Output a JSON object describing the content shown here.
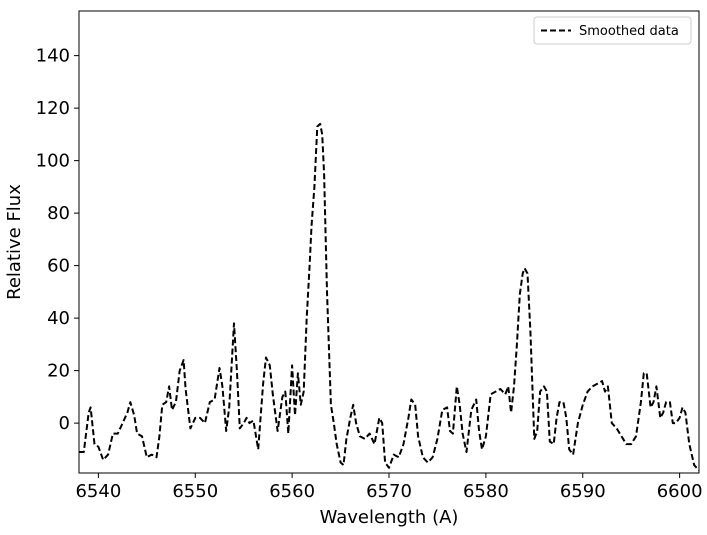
{
  "chart_data": {
    "type": "line",
    "title": "",
    "xlabel": "Wavelength (A)",
    "ylabel": "Relative Flux",
    "xlim": [
      6538,
      6602
    ],
    "ylim": [
      -19,
      157
    ],
    "xticks": [
      6540,
      6550,
      6560,
      6570,
      6580,
      6590,
      6600
    ],
    "yticks": [
      0,
      20,
      40,
      60,
      80,
      100,
      120,
      140
    ],
    "grid": false,
    "legend": {
      "position": "top-right",
      "entries": [
        "Smoothed data"
      ]
    },
    "series": [
      {
        "name": "Smoothed data",
        "color": "#000000",
        "line_style": "dashed",
        "x": [
          6538.0,
          6538.5,
          6539.0,
          6539.2,
          6539.6,
          6540.0,
          6540.5,
          6541.0,
          6541.5,
          6542.0,
          6542.5,
          6543.0,
          6543.3,
          6543.7,
          6544.0,
          6544.5,
          6545.0,
          6545.5,
          6546.0,
          6546.3,
          6546.6,
          6547.0,
          6547.3,
          6547.6,
          6548.0,
          6548.4,
          6548.8,
          6549.0,
          6549.5,
          6550.0,
          6550.5,
          6551.0,
          6551.5,
          6552.0,
          6552.5,
          6552.8,
          6553.2,
          6553.5,
          6554.0,
          6554.3,
          6554.6,
          6555.0,
          6555.3,
          6555.6,
          6556.0,
          6556.5,
          6557.0,
          6557.3,
          6557.7,
          6558.0,
          6558.5,
          6559.0,
          6559.3,
          6559.6,
          6560.0,
          6560.3,
          6560.6,
          6560.9,
          6561.2,
          6561.5,
          6561.8,
          6562.0,
          6562.3,
          6562.6,
          6562.9,
          6563.1,
          6563.3,
          6563.6,
          6564.0,
          6564.3,
          6564.6,
          6565.0,
          6565.3,
          6565.6,
          6566.0,
          6566.3,
          6566.6,
          6567.0,
          6567.5,
          6568.0,
          6568.5,
          6569.0,
          6569.3,
          6569.6,
          6570.0,
          6570.5,
          6571.0,
          6571.5,
          6572.0,
          6572.3,
          6572.7,
          6573.0,
          6573.5,
          6574.0,
          6574.5,
          6575.0,
          6575.5,
          6576.0,
          6576.3,
          6576.6,
          6577.0,
          6577.3,
          6577.6,
          6578.0,
          6578.5,
          6579.0,
          6579.3,
          6579.6,
          6580.0,
          6580.5,
          6581.0,
          6581.5,
          6582.0,
          6582.3,
          6582.6,
          6582.9,
          6583.2,
          6583.5,
          6583.8,
          6584.0,
          6584.3,
          6584.6,
          6585.0,
          6585.3,
          6585.6,
          6586.0,
          6586.3,
          6586.6,
          6587.0,
          6587.3,
          6587.6,
          6588.0,
          6588.3,
          6588.6,
          6589.0,
          6589.5,
          6590.0,
          6590.5,
          6591.0,
          6591.5,
          6592.0,
          6592.3,
          6592.6,
          6593.0,
          6593.5,
          6594.0,
          6594.5,
          6595.0,
          6595.5,
          6596.0,
          6596.3,
          6596.6,
          6597.0,
          6597.3,
          6597.6,
          6598.0,
          6598.3,
          6598.6,
          6599.0,
          6599.3,
          6599.6,
          6600.0,
          6600.3,
          6600.6,
          6601.0,
          6601.5,
          6602.0
        ],
        "y": [
          -11,
          -11,
          4,
          6,
          -8,
          -9,
          -14,
          -12,
          -4,
          -4,
          0,
          4,
          8,
          3,
          -4,
          -5,
          -13,
          -12,
          -13,
          -5,
          7,
          8,
          14,
          5,
          8,
          20,
          24,
          13,
          -2,
          2,
          2,
          0,
          8,
          9,
          21,
          14,
          -3,
          6,
          38,
          20,
          -2,
          0,
          2,
          0,
          1,
          -10,
          15,
          25,
          22,
          11,
          -3,
          10,
          12,
          -4,
          22,
          3,
          19,
          7,
          12,
          40,
          60,
          75,
          90,
          113,
          114,
          110,
          95,
          50,
          7,
          0,
          -8,
          -15,
          -16,
          -6,
          2,
          7,
          0,
          -5,
          -6,
          -4,
          -8,
          2,
          0,
          -15,
          -17,
          -12,
          -13,
          -8,
          2,
          9,
          7,
          -5,
          -13,
          -15,
          -13,
          -6,
          5,
          6,
          -3,
          -4,
          14,
          7,
          -4,
          -11,
          5,
          9,
          -3,
          -10,
          -5,
          11,
          12,
          13,
          11,
          14,
          4,
          14,
          30,
          49,
          57,
          59,
          57,
          35,
          -6,
          -3,
          12,
          14,
          12,
          -7,
          -8,
          2,
          8,
          8,
          2,
          -10,
          -12,
          0,
          7,
          12,
          14,
          15,
          16,
          12,
          14,
          0,
          -2,
          -5,
          -8,
          -8,
          -5,
          8,
          19,
          19,
          6,
          8,
          14,
          2,
          4,
          8,
          8,
          0,
          0,
          2,
          6,
          4,
          -8,
          -16,
          -18
        ]
      }
    ]
  }
}
